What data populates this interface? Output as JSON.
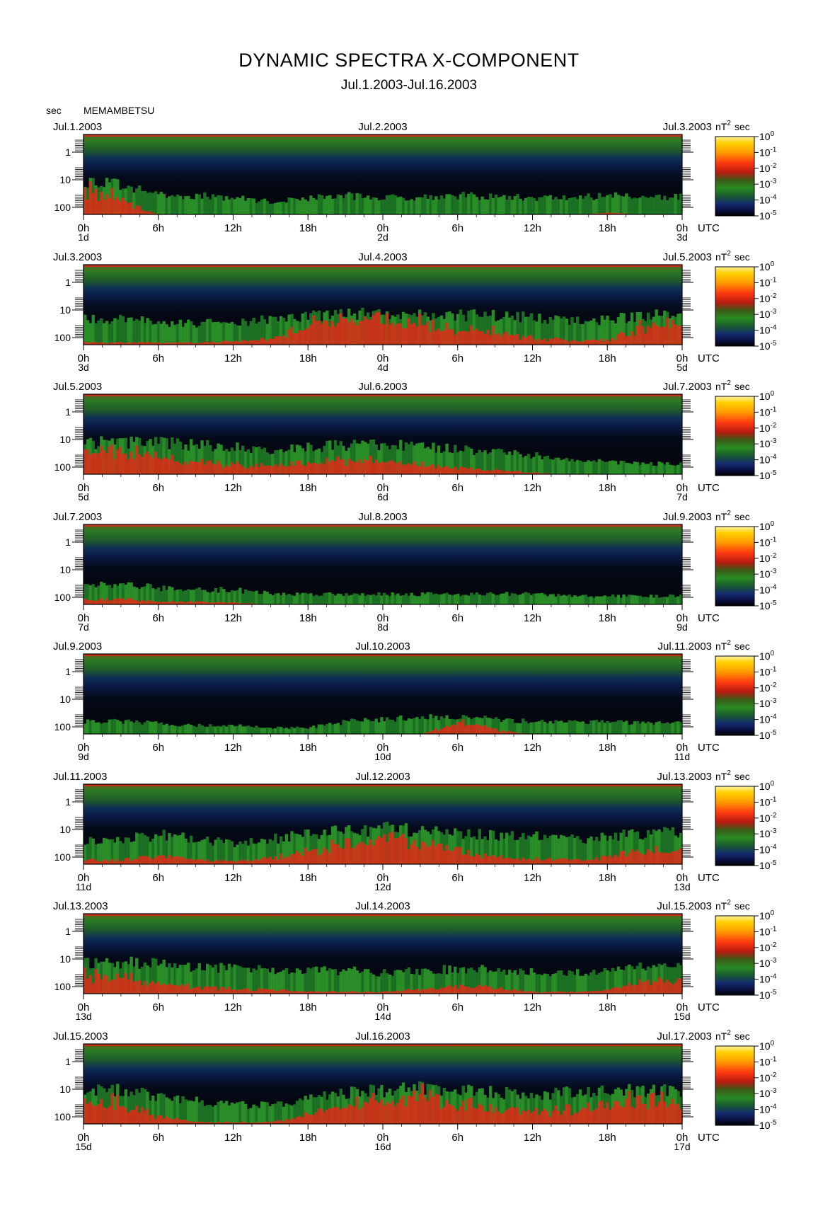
{
  "title": "DYNAMIC SPECTRA X-COMPONENT",
  "subtitle": "Jul.1.2003-Jul.16.2003",
  "y_unit_label": "sec",
  "station": "MEMAMBETSU",
  "unit_label": "nT² sec",
  "utc_label": "UTC",
  "colors": {
    "background": "#000000",
    "noise_floor": "#0b1a55",
    "high_freq_band": "#1d7a20",
    "activity_green": "#2e9a2a",
    "activity_red": "#e02a18",
    "peak": "#ffd000",
    "strip_top_red": "#c0301a"
  },
  "chart_data": [
    {
      "type": "heatmap",
      "panel": 1,
      "date_left": "Jul.1.2003",
      "date_mid": "Jul.2.2003",
      "date_right": "Jul.3.2003",
      "x_tick_labels": [
        "0h",
        "6h",
        "12h",
        "18h",
        "0h",
        "6h",
        "12h",
        "18h",
        "0h"
      ],
      "day_labels": [
        "1d",
        "2d",
        "3d"
      ],
      "y_tick_labels": [
        "1",
        "10",
        "100"
      ],
      "ylabel": "sec",
      "y_scale": "log",
      "y_reversed": true,
      "colorbar_labels": [
        "10^0",
        "10^-1",
        "10^-2",
        "10^-3",
        "10^-4",
        "10^-5"
      ],
      "activity": [
        0.8,
        0.7,
        0.45,
        0.45,
        0.4,
        0.3,
        0.4,
        0.45,
        0.4,
        0.42,
        0.45,
        0.42,
        0.4,
        0.4,
        0.45,
        0.42
      ],
      "heat": [
        0.9,
        0.6,
        0,
        0,
        0,
        0,
        0,
        0,
        0,
        0,
        0,
        0,
        0,
        0,
        0.1,
        0
      ]
    },
    {
      "type": "heatmap",
      "panel": 2,
      "date_left": "Jul.3.2003",
      "date_mid": "Jul.4.2003",
      "date_right": "Jul.5.2003",
      "x_tick_labels": [
        "0h",
        "6h",
        "12h",
        "18h",
        "0h",
        "6h",
        "12h",
        "18h",
        "0h"
      ],
      "day_labels": [
        "3d",
        "4d",
        "5d"
      ],
      "y_tick_labels": [
        "1",
        "10",
        "100"
      ],
      "ylabel": "sec",
      "y_scale": "log",
      "y_reversed": true,
      "colorbar_labels": [
        "10^0",
        "10^-1",
        "10^-2",
        "10^-3",
        "10^-4",
        "10^-5"
      ],
      "activity": [
        0.6,
        0.6,
        0.55,
        0.5,
        0.55,
        0.6,
        0.7,
        0.75,
        0.75,
        0.75,
        0.7,
        0.7,
        0.65,
        0.55,
        0.6,
        0.7
      ],
      "heat": [
        0.1,
        0.1,
        0.1,
        0.1,
        0.2,
        0.3,
        0.8,
        0.9,
        0.9,
        0.8,
        0.6,
        0.5,
        0.3,
        0.2,
        0.2,
        0.8
      ]
    },
    {
      "type": "heatmap",
      "panel": 3,
      "date_left": "Jul.5.2003",
      "date_mid": "Jul.6.2003",
      "date_right": "Jul.7.2003",
      "x_tick_labels": [
        "0h",
        "6h",
        "12h",
        "18h",
        "0h",
        "6h",
        "12h",
        "18h",
        "0h"
      ],
      "day_labels": [
        "5d",
        "6d",
        "7d"
      ],
      "y_tick_labels": [
        "1",
        "10",
        "100"
      ],
      "ylabel": "sec",
      "y_scale": "log",
      "y_reversed": true,
      "colorbar_labels": [
        "10^0",
        "10^-1",
        "10^-2",
        "10^-3",
        "10^-4",
        "10^-5"
      ],
      "activity": [
        0.75,
        0.75,
        0.75,
        0.7,
        0.65,
        0.6,
        0.65,
        0.7,
        0.7,
        0.65,
        0.6,
        0.55,
        0.45,
        0.35,
        0.3,
        0.25
      ],
      "heat": [
        0.8,
        0.8,
        0.6,
        0.5,
        0.4,
        0.4,
        0.5,
        0.6,
        0.5,
        0.4,
        0.3,
        0.2,
        0.1,
        0,
        0,
        0
      ]
    },
    {
      "type": "heatmap",
      "panel": 4,
      "date_left": "Jul.7.2003",
      "date_mid": "Jul.8.2003",
      "date_right": "Jul.9.2003",
      "x_tick_labels": [
        "0h",
        "6h",
        "12h",
        "18h",
        "0h",
        "6h",
        "12h",
        "18h",
        "0h"
      ],
      "day_labels": [
        "7d",
        "8d",
        "9d"
      ],
      "y_tick_labels": [
        "1",
        "10",
        "100"
      ],
      "ylabel": "sec",
      "y_scale": "log",
      "y_reversed": true,
      "colorbar_labels": [
        "10^0",
        "10^-1",
        "10^-2",
        "10^-3",
        "10^-4",
        "10^-5"
      ],
      "activity": [
        0.45,
        0.45,
        0.4,
        0.35,
        0.35,
        0.25,
        0.25,
        0.25,
        0.25,
        0.25,
        0.25,
        0.25,
        0.25,
        0.2,
        0.2,
        0.2
      ],
      "heat": [
        0.3,
        0.3,
        0.2,
        0.2,
        0.15,
        0,
        0,
        0,
        0,
        0,
        0,
        0,
        0,
        0,
        0,
        0
      ]
    },
    {
      "type": "heatmap",
      "panel": 5,
      "date_left": "Jul.9.2003",
      "date_mid": "Jul.10.2003",
      "date_right": "Jul.11.2003",
      "x_tick_labels": [
        "0h",
        "6h",
        "12h",
        "18h",
        "0h",
        "6h",
        "12h",
        "18h",
        "0h"
      ],
      "day_labels": [
        "9d",
        "10d",
        "11d"
      ],
      "y_tick_labels": [
        "1",
        "10",
        "100"
      ],
      "ylabel": "sec",
      "y_scale": "log",
      "y_reversed": true,
      "colorbar_labels": [
        "10^0",
        "10^-1",
        "10^-2",
        "10^-3",
        "10^-4",
        "10^-5"
      ],
      "activity": [
        0.3,
        0.3,
        0.25,
        0.2,
        0.2,
        0.15,
        0.15,
        0.3,
        0.35,
        0.4,
        0.4,
        0.35,
        0.3,
        0.3,
        0.3,
        0.25
      ],
      "heat": [
        0,
        0,
        0,
        0,
        0,
        0,
        0,
        0,
        0,
        0,
        0.8,
        0.3,
        0,
        0,
        0,
        0
      ]
    },
    {
      "type": "heatmap",
      "panel": 6,
      "date_left": "Jul.11.2003",
      "date_mid": "Jul.12.2003",
      "date_right": "Jul.13.2003",
      "x_tick_labels": [
        "0h",
        "6h",
        "12h",
        "18h",
        "0h",
        "6h",
        "12h",
        "18h",
        "0h"
      ],
      "day_labels": [
        "11d",
        "12d",
        "13d"
      ],
      "y_tick_labels": [
        "1",
        "10",
        "100"
      ],
      "ylabel": "sec",
      "y_scale": "log",
      "y_reversed": true,
      "colorbar_labels": [
        "10^0",
        "10^-1",
        "10^-2",
        "10^-3",
        "10^-4",
        "10^-5"
      ],
      "activity": [
        0.55,
        0.6,
        0.7,
        0.6,
        0.5,
        0.6,
        0.7,
        0.8,
        0.85,
        0.8,
        0.75,
        0.7,
        0.65,
        0.6,
        0.65,
        0.75
      ],
      "heat": [
        0.2,
        0.2,
        0.3,
        0.2,
        0.2,
        0.3,
        0.5,
        0.7,
        0.8,
        0.7,
        0.5,
        0.3,
        0.2,
        0.2,
        0.3,
        0.5
      ]
    },
    {
      "type": "heatmap",
      "panel": 7,
      "date_left": "Jul.13.2003",
      "date_mid": "Jul.14.2003",
      "date_right": "Jul.15.2003",
      "x_tick_labels": [
        "0h",
        "6h",
        "12h",
        "18h",
        "0h",
        "6h",
        "12h",
        "18h",
        "0h"
      ],
      "day_labels": [
        "13d",
        "14d",
        "15d"
      ],
      "y_tick_labels": [
        "1",
        "10",
        "100"
      ],
      "ylabel": "sec",
      "y_scale": "log",
      "y_reversed": true,
      "colorbar_labels": [
        "10^0",
        "10^-1",
        "10^-2",
        "10^-3",
        "10^-4",
        "10^-5"
      ],
      "activity": [
        0.75,
        0.75,
        0.7,
        0.65,
        0.6,
        0.55,
        0.55,
        0.55,
        0.5,
        0.55,
        0.6,
        0.55,
        0.5,
        0.5,
        0.55,
        0.65
      ],
      "heat": [
        0.7,
        0.6,
        0.4,
        0.3,
        0.2,
        0.2,
        0.1,
        0.1,
        0.1,
        0.2,
        0.4,
        0.3,
        0.1,
        0.1,
        0.2,
        0.5
      ]
    },
    {
      "type": "heatmap",
      "panel": 8,
      "date_left": "Jul.15.2003",
      "date_mid": "Jul.16.2003",
      "date_right": "Jul.17.2003",
      "x_tick_labels": [
        "0h",
        "6h",
        "12h",
        "18h",
        "0h",
        "6h",
        "12h",
        "18h",
        "0h"
      ],
      "day_labels": [
        "15d",
        "16d",
        "17d"
      ],
      "y_tick_labels": [
        "1",
        "10",
        "100"
      ],
      "ylabel": "sec",
      "y_scale": "log",
      "y_reversed": true,
      "colorbar_labels": [
        "10^0",
        "10^-1",
        "10^-2",
        "10^-3",
        "10^-4",
        "10^-5"
      ],
      "activity": [
        0.8,
        0.8,
        0.65,
        0.55,
        0.45,
        0.45,
        0.6,
        0.75,
        0.8,
        0.85,
        0.8,
        0.75,
        0.7,
        0.75,
        0.8,
        0.8
      ],
      "heat": [
        0.8,
        0.7,
        0.3,
        0.1,
        0.1,
        0.1,
        0.5,
        0.7,
        0.8,
        0.9,
        0.7,
        0.6,
        0.5,
        0.5,
        0.7,
        0.8
      ]
    }
  ]
}
